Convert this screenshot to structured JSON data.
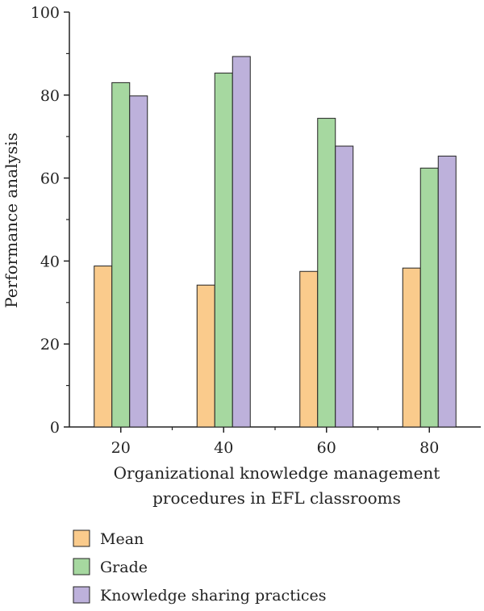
{
  "chart_data": {
    "type": "bar",
    "categories": [
      "20",
      "40",
      "60",
      "80"
    ],
    "series": [
      {
        "name": "Mean",
        "values": [
          38.8,
          34.2,
          37.5,
          38.3
        ],
        "color": "#FACB8C"
      },
      {
        "name": "Grade",
        "values": [
          83.0,
          85.3,
          74.4,
          62.4
        ],
        "color": "#A6D8A0"
      },
      {
        "name": "Knowledge sharing practices",
        "values": [
          79.8,
          89.3,
          67.7,
          65.3
        ],
        "color": "#BDB1DB"
      }
    ],
    "xlabel_lines": [
      "Organizational knowledge management",
      "procedures in EFL classrooms"
    ],
    "ylabel": "Performance analysis",
    "ylim": [
      0,
      100
    ],
    "yticks": [
      0,
      20,
      40,
      60,
      80,
      100
    ],
    "grid": false,
    "legend_position": "bottom-left"
  }
}
